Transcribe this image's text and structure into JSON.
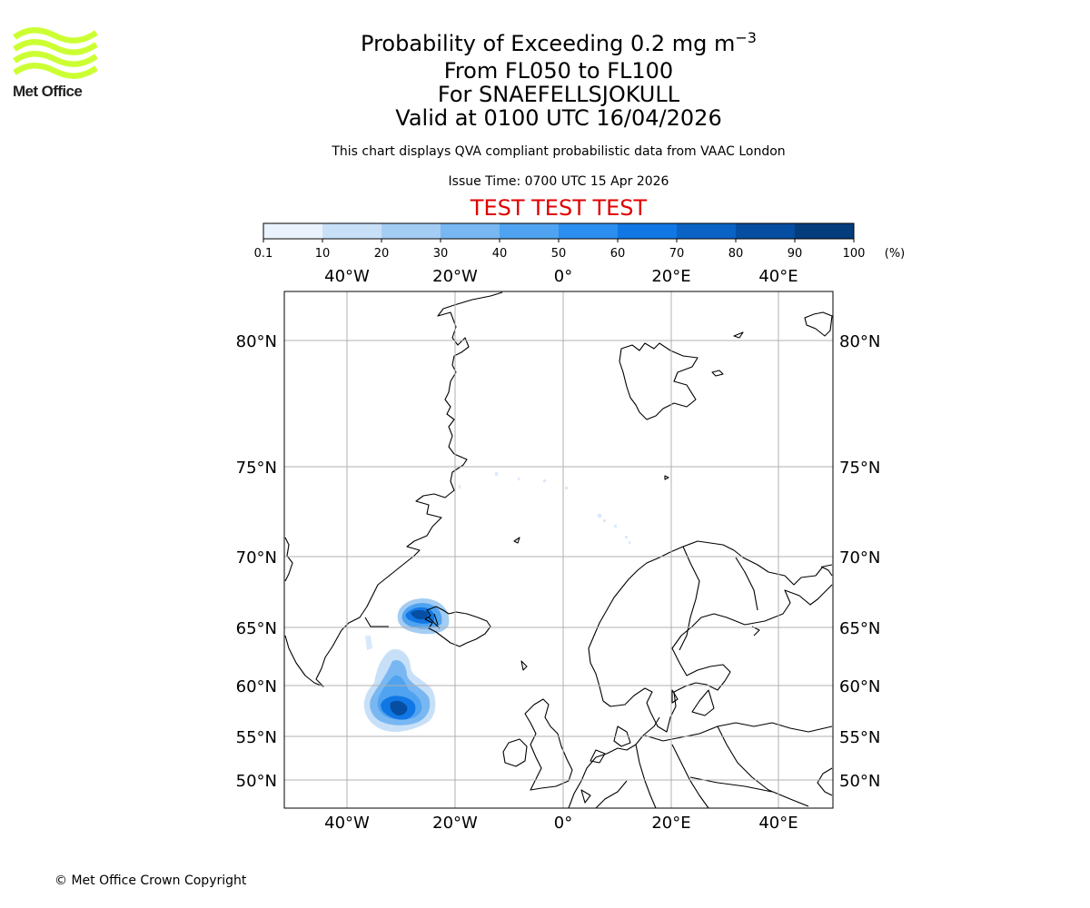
{
  "logo": {
    "text": "Met Office",
    "color": "#ccff33"
  },
  "header": {
    "title_prefix": "Probability of Exceeding 0.2 mg m",
    "title_exponent": "−3",
    "flight_levels": "From FL050 to FL100",
    "volcano": "For SNAEFELLSJOKULL",
    "valid_time": "Valid at 0100 UTC 16/04/2026",
    "disclaimer": "This chart displays QVA compliant probabilistic data from VAAC London",
    "issue_time": "Issue Time: 0700 UTC 15 Apr 2026",
    "test_banner": "TEST TEST TEST",
    "test_color": "#e00000"
  },
  "colorbar": {
    "ticks": [
      "0.1",
      "10",
      "20",
      "30",
      "40",
      "50",
      "60",
      "70",
      "80",
      "90",
      "100"
    ],
    "unit": "(%)",
    "colors": [
      "#eaf3fd",
      "#c7e0f8",
      "#a4cdf4",
      "#78b7f2",
      "#4fa3f0",
      "#2b8ef0",
      "#1177e4",
      "#0a63c4",
      "#064ea1",
      "#053c7c",
      "#082a56"
    ]
  },
  "map": {
    "lon_labels": [
      "40°W",
      "20°W",
      "0°",
      "20°E",
      "40°E"
    ],
    "lat_labels": [
      "80°N",
      "75°N",
      "70°N",
      "65°N",
      "60°N",
      "55°N",
      "50°N"
    ],
    "grid_color": "#b0b0b0"
  },
  "footer": {
    "copyright": "© Met Office Crown Copyright"
  }
}
